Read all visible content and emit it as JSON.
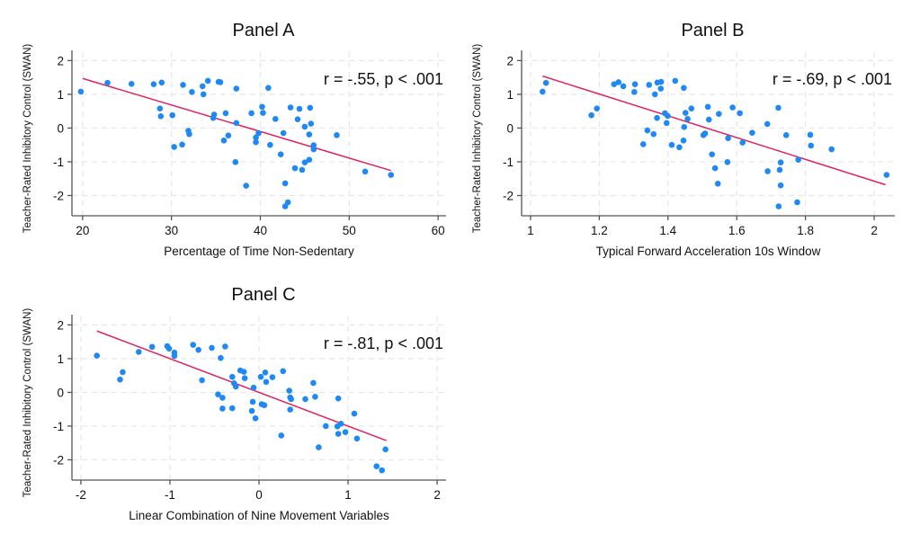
{
  "chart_data": [
    {
      "type": "scatter",
      "title": "Panel A",
      "xlabel": "Percentage of Time Non-Sedentary",
      "ylabel": "Teacher-Rated Inhibitory Control (SWAN)",
      "annotation": "r = -.55, p < .001",
      "xlim": [
        18.8,
        60.9
      ],
      "ylim": [
        -2.6,
        2.25
      ],
      "xticks": [
        20,
        30,
        40,
        50,
        60
      ],
      "yticks": [
        2,
        1,
        0,
        -1,
        -2
      ],
      "xtick_labels": [
        "20",
        "30",
        "40",
        "50",
        "60"
      ],
      "ytick_labels": [
        "2",
        "1",
        "0",
        "-1",
        "-2"
      ],
      "grid": true,
      "colors": {
        "points": "#1e88f5",
        "fit_line": "#e0245e"
      },
      "fit_line": {
        "x": [
          20.0,
          54.7
        ],
        "y": [
          1.47,
          -1.26
        ]
      },
      "points": [
        [
          19.8,
          1.08
        ],
        [
          22.8,
          1.34
        ],
        [
          25.5,
          1.31
        ],
        [
          28.0,
          1.3
        ],
        [
          28.9,
          1.35
        ],
        [
          28.7,
          0.58
        ],
        [
          28.8,
          0.35
        ],
        [
          30.1,
          0.38
        ],
        [
          30.3,
          -0.56
        ],
        [
          31.2,
          -0.49
        ],
        [
          31.3,
          1.28
        ],
        [
          32.3,
          1.07
        ],
        [
          31.9,
          -0.08
        ],
        [
          32.0,
          -0.18
        ],
        [
          33.5,
          1.24
        ],
        [
          33.6,
          1.0
        ],
        [
          34.1,
          1.4
        ],
        [
          34.8,
          0.4
        ],
        [
          34.7,
          0.3
        ],
        [
          35.3,
          1.37
        ],
        [
          35.5,
          1.36
        ],
        [
          36.1,
          0.44
        ],
        [
          35.9,
          -0.37
        ],
        [
          36.4,
          -0.22
        ],
        [
          37.3,
          1.17
        ],
        [
          37.3,
          0.15
        ],
        [
          37.2,
          -1.01
        ],
        [
          38.4,
          -1.71
        ],
        [
          39.0,
          0.44
        ],
        [
          39.5,
          -0.28
        ],
        [
          39.5,
          -0.42
        ],
        [
          39.8,
          -0.15
        ],
        [
          40.2,
          0.63
        ],
        [
          40.3,
          0.45
        ],
        [
          40.9,
          1.19
        ],
        [
          41.7,
          0.27
        ],
        [
          41.1,
          -0.5
        ],
        [
          42.3,
          -0.78
        ],
        [
          42.6,
          -0.15
        ],
        [
          42.8,
          -1.64
        ],
        [
          42.8,
          -2.32
        ],
        [
          43.1,
          -2.2
        ],
        [
          43.4,
          0.61
        ],
        [
          43.9,
          -1.19
        ],
        [
          44.2,
          0.26
        ],
        [
          44.4,
          0.57
        ],
        [
          44.7,
          -1.24
        ],
        [
          45.0,
          0.04
        ],
        [
          45.0,
          -1.02
        ],
        [
          45.5,
          -0.19
        ],
        [
          45.5,
          -0.94
        ],
        [
          45.6,
          0.6
        ],
        [
          45.7,
          0.13
        ],
        [
          46.0,
          -0.51
        ],
        [
          46.0,
          -0.63
        ],
        [
          48.6,
          -0.21
        ],
        [
          51.8,
          -1.29
        ],
        [
          54.7,
          -1.39
        ]
      ]
    },
    {
      "type": "scatter",
      "title": "Panel B",
      "xlabel": "Typical Forward Acceleration 10s Window",
      "ylabel": "Teacher-Rated Inhibitory Control (SWAN)",
      "annotation": "r = -.69, p < .001",
      "xlim": [
        0.974,
        2.06
      ],
      "ylim": [
        -2.6,
        2.25
      ],
      "xticks": [
        1,
        1.2,
        1.4,
        1.6,
        1.8,
        2
      ],
      "yticks": [
        2,
        1,
        0,
        -1,
        -2
      ],
      "xtick_labels": [
        "1",
        "1.2",
        "1.4",
        "1.6",
        "1.8",
        "2"
      ],
      "ytick_labels": [
        "2",
        "1",
        "0",
        "-1",
        "-2"
      ],
      "grid": true,
      "colors": {
        "points": "#1e88f5",
        "fit_line": "#e0245e"
      },
      "fit_line": {
        "x": [
          1.035,
          2.033
        ],
        "y": [
          1.54,
          -1.68
        ]
      },
      "points": [
        [
          1.035,
          1.08
        ],
        [
          1.045,
          1.34
        ],
        [
          1.177,
          0.38
        ],
        [
          1.193,
          0.58
        ],
        [
          1.243,
          1.3
        ],
        [
          1.256,
          1.36
        ],
        [
          1.27,
          1.24
        ],
        [
          1.304,
          1.3
        ],
        [
          1.302,
          1.07
        ],
        [
          1.328,
          -0.48
        ],
        [
          1.34,
          -0.07
        ],
        [
          1.345,
          1.28
        ],
        [
          1.358,
          -0.18
        ],
        [
          1.362,
          1.0
        ],
        [
          1.369,
          1.35
        ],
        [
          1.38,
          1.37
        ],
        [
          1.379,
          1.17
        ],
        [
          1.368,
          0.3
        ],
        [
          1.391,
          0.44
        ],
        [
          1.399,
          0.36
        ],
        [
          1.396,
          0.15
        ],
        [
          1.411,
          -0.5
        ],
        [
          1.421,
          1.4
        ],
        [
          1.433,
          -0.57
        ],
        [
          1.446,
          1.19
        ],
        [
          1.445,
          -0.37
        ],
        [
          1.447,
          0.03
        ],
        [
          1.451,
          0.45
        ],
        [
          1.457,
          0.27
        ],
        [
          1.468,
          0.58
        ],
        [
          1.503,
          -0.21
        ],
        [
          1.508,
          -0.16
        ],
        [
          1.516,
          0.63
        ],
        [
          1.519,
          0.25
        ],
        [
          1.528,
          -0.78
        ],
        [
          1.537,
          -1.19
        ],
        [
          1.545,
          -1.65
        ],
        [
          1.548,
          0.42
        ],
        [
          1.588,
          0.61
        ],
        [
          1.609,
          0.44
        ],
        [
          1.575,
          -0.3
        ],
        [
          1.617,
          -0.43
        ],
        [
          1.573,
          -1.01
        ],
        [
          1.645,
          -0.14
        ],
        [
          1.689,
          0.12
        ],
        [
          1.69,
          -1.28
        ],
        [
          1.721,
          0.6
        ],
        [
          1.725,
          -1.24
        ],
        [
          1.728,
          -1.02
        ],
        [
          1.728,
          -1.7
        ],
        [
          1.722,
          -2.32
        ],
        [
          1.744,
          -0.21
        ],
        [
          1.779,
          -0.94
        ],
        [
          1.776,
          -2.2
        ],
        [
          1.814,
          -0.2
        ],
        [
          1.816,
          -0.52
        ],
        [
          1.876,
          -0.63
        ],
        [
          2.036,
          -1.39
        ]
      ]
    },
    {
      "type": "scatter",
      "title": "Panel C",
      "xlabel": "Linear Combination of Nine Movement Variables",
      "ylabel": "Teacher-Rated Inhibitory Control (SWAN)",
      "annotation": "r = -.81, p < .001",
      "xlim": [
        -2.1,
        2.1
      ],
      "ylim": [
        -2.6,
        2.25
      ],
      "xticks": [
        -2,
        -1,
        0,
        1,
        2
      ],
      "yticks": [
        2,
        1,
        0,
        -1,
        -2
      ],
      "xtick_labels": [
        "-2",
        "-1",
        "0",
        "1",
        "2"
      ],
      "ytick_labels": [
        "2",
        "1",
        "0",
        "-1",
        "-2"
      ],
      "grid": true,
      "colors": {
        "points": "#1e88f5",
        "fit_line": "#e0245e"
      },
      "fit_line": {
        "x": [
          -1.82,
          1.43
        ],
        "y": [
          1.82,
          -1.43
        ]
      },
      "points": [
        [
          -1.82,
          1.09
        ],
        [
          -1.56,
          0.38
        ],
        [
          -1.53,
          0.6
        ],
        [
          -1.35,
          1.2
        ],
        [
          -1.2,
          1.35
        ],
        [
          -1.03,
          1.37
        ],
        [
          -1.01,
          1.3
        ],
        [
          -0.95,
          1.18
        ],
        [
          -0.95,
          1.08
        ],
        [
          -0.74,
          1.41
        ],
        [
          -0.68,
          1.26
        ],
        [
          -0.64,
          0.36
        ],
        [
          -0.53,
          1.32
        ],
        [
          -0.43,
          1.02
        ],
        [
          -0.38,
          1.36
        ],
        [
          -0.46,
          -0.06
        ],
        [
          -0.41,
          -0.16
        ],
        [
          -0.41,
          -0.48
        ],
        [
          -0.3,
          -0.47
        ],
        [
          -0.3,
          0.46
        ],
        [
          -0.28,
          0.27
        ],
        [
          -0.26,
          0.17
        ],
        [
          -0.21,
          0.65
        ],
        [
          -0.17,
          0.61
        ],
        [
          -0.16,
          0.42
        ],
        [
          -0.06,
          0.14
        ],
        [
          -0.07,
          -0.28
        ],
        [
          -0.08,
          -0.55
        ],
        [
          -0.04,
          -0.77
        ],
        [
          0.02,
          0.46
        ],
        [
          0.03,
          -0.35
        ],
        [
          0.07,
          0.59
        ],
        [
          0.08,
          0.31
        ],
        [
          0.06,
          -0.38
        ],
        [
          0.15,
          0.45
        ],
        [
          0.27,
          0.63
        ],
        [
          0.25,
          -1.28
        ],
        [
          0.34,
          0.05
        ],
        [
          0.35,
          -0.15
        ],
        [
          0.36,
          -0.2
        ],
        [
          0.35,
          -0.51
        ],
        [
          0.52,
          -0.2
        ],
        [
          0.61,
          0.28
        ],
        [
          0.63,
          -0.13
        ],
        [
          0.67,
          -1.63
        ],
        [
          0.75,
          -1.0
        ],
        [
          0.89,
          -0.18
        ],
        [
          0.88,
          -1.01
        ],
        [
          0.89,
          -1.23
        ],
        [
          0.92,
          -0.93
        ],
        [
          0.97,
          -1.18
        ],
        [
          1.07,
          -0.63
        ],
        [
          1.1,
          -1.37
        ],
        [
          1.32,
          -2.19
        ],
        [
          1.38,
          -2.31
        ],
        [
          1.42,
          -1.69
        ]
      ]
    }
  ]
}
